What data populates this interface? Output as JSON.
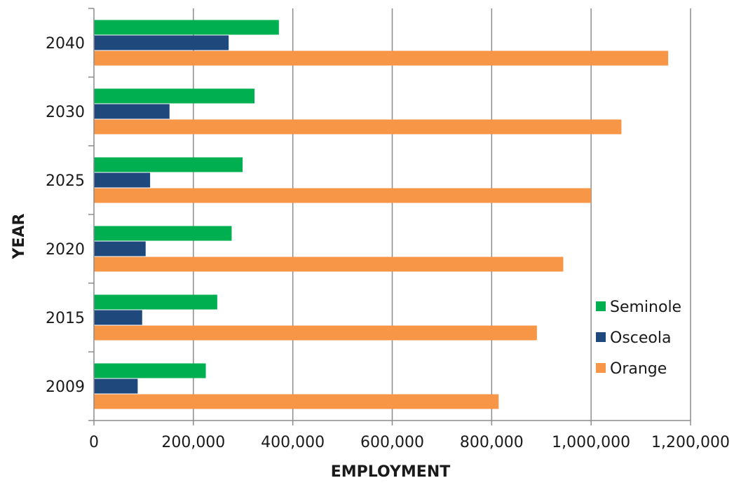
{
  "chart_data": {
    "type": "bar",
    "orientation": "horizontal",
    "title": "",
    "xlabel": "EMPLOYMENT",
    "ylabel": "YEAR",
    "categories": [
      "2009",
      "2015",
      "2020",
      "2025",
      "2030",
      "2040"
    ],
    "xlim": [
      0,
      1200000
    ],
    "xticks": [
      0,
      200000,
      400000,
      600000,
      800000,
      1000000,
      1200000
    ],
    "xtick_labels": [
      "0",
      "200,000",
      "400,000",
      "600,000",
      "800,000",
      "1,000,000",
      "1,200,000"
    ],
    "grid": "vertical major gridlines",
    "legend_position": "right",
    "series": [
      {
        "name": "Seminole",
        "color": "#00b050",
        "values": [
          225000,
          248000,
          277000,
          299000,
          323000,
          372000
        ]
      },
      {
        "name": "Osceola",
        "color": "#1f497d",
        "values": [
          88000,
          97000,
          104000,
          113000,
          152000,
          271000
        ]
      },
      {
        "name": "Orange",
        "color": "#f79646",
        "values": [
          814000,
          891000,
          944000,
          1000000,
          1061000,
          1155000
        ]
      }
    ]
  }
}
